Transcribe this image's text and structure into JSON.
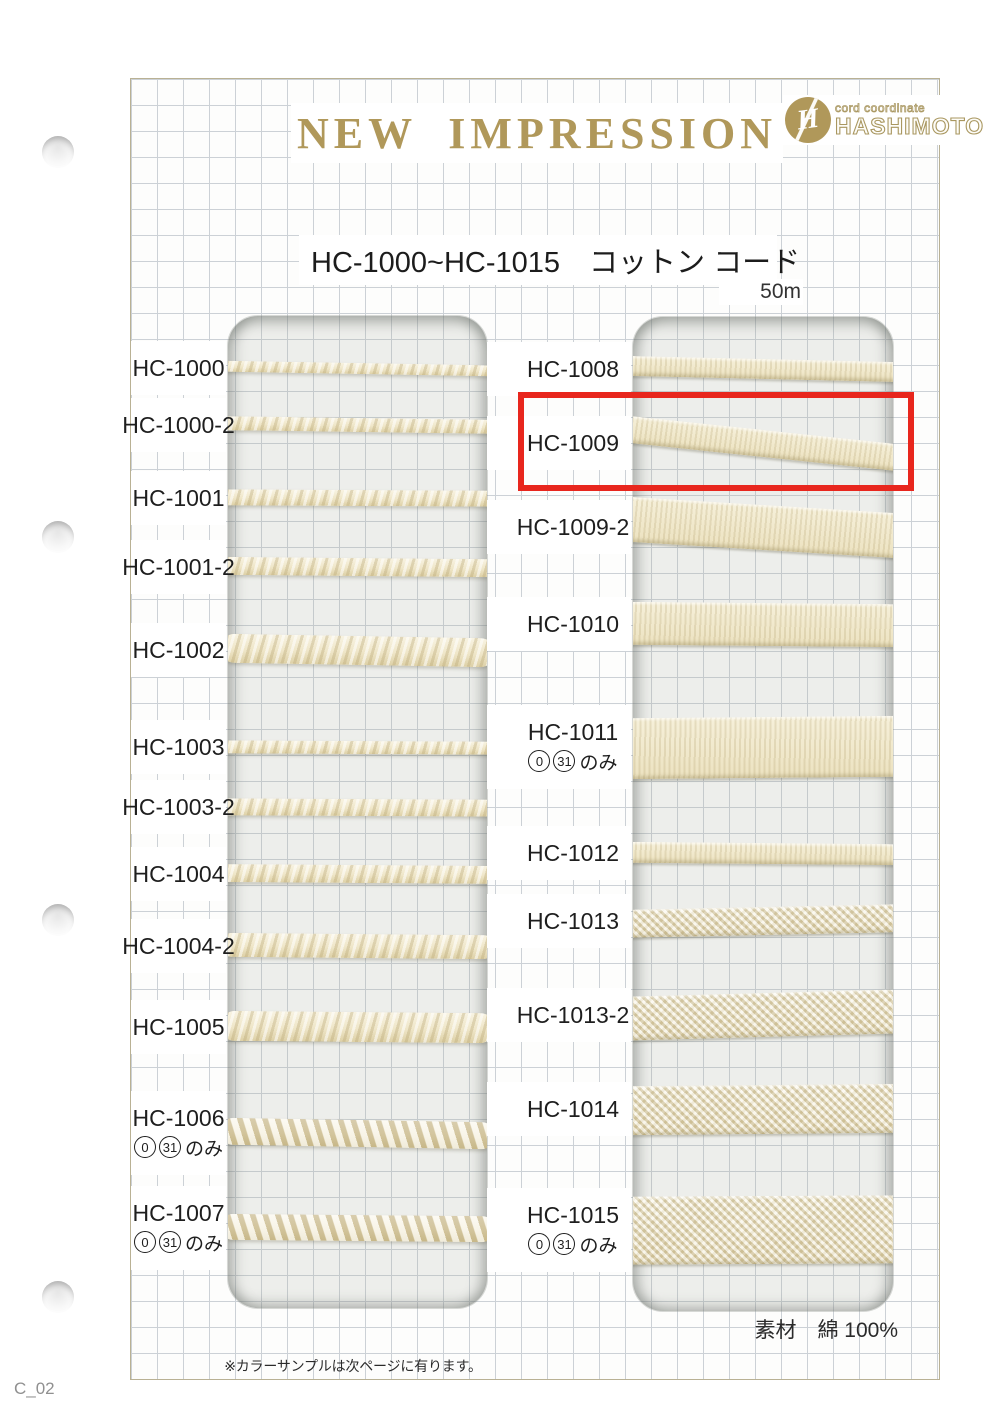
{
  "header": {
    "title": "NEW IMPRESSION",
    "logo": {
      "monogram": "H",
      "tagline": "cord coordinate",
      "company": "HASHIMOTO"
    },
    "subtitle": "HC-1000~HC-1015　コットン コード",
    "length_note": "50m"
  },
  "highlight": {
    "target": "HC-1009"
  },
  "samples": {
    "left": [
      {
        "id": "HC-1000",
        "type": "round-braid",
        "thickness": 11
      },
      {
        "id": "HC-1000-2",
        "type": "round-braid",
        "thickness": 14
      },
      {
        "id": "HC-1001",
        "type": "round-braid",
        "thickness": 16
      },
      {
        "id": "HC-1001-2",
        "type": "round-braid",
        "thickness": 18
      },
      {
        "id": "HC-1002",
        "type": "round-braid",
        "thickness": 29
      },
      {
        "id": "HC-1003",
        "type": "round-braid",
        "thickness": 13
      },
      {
        "id": "HC-1003-2",
        "type": "round-braid",
        "thickness": 17
      },
      {
        "id": "HC-1004",
        "type": "round-braid",
        "thickness": 18
      },
      {
        "id": "HC-1004-2",
        "type": "round-braid",
        "thickness": 24
      },
      {
        "id": "HC-1005",
        "type": "round-braid",
        "thickness": 30
      },
      {
        "id": "HC-1006",
        "type": "twist",
        "thickness": 27,
        "variants": [
          "0",
          "31"
        ],
        "variants_suffix": "のみ"
      },
      {
        "id": "HC-1007",
        "type": "twist",
        "thickness": 26,
        "variants": [
          "0",
          "31"
        ],
        "variants_suffix": "のみ"
      }
    ],
    "right": [
      {
        "id": "HC-1008",
        "type": "flat-tape",
        "thickness": 20
      },
      {
        "id": "HC-1009",
        "type": "flat-tape",
        "thickness": 27,
        "highlighted": true
      },
      {
        "id": "HC-1009-2",
        "type": "flat-tape",
        "thickness": 45
      },
      {
        "id": "HC-1010",
        "type": "flat-tape",
        "thickness": 43
      },
      {
        "id": "HC-1011",
        "type": "flat-tape",
        "thickness": 61,
        "variants": [
          "0",
          "31"
        ],
        "variants_suffix": "のみ"
      },
      {
        "id": "HC-1012",
        "type": "flat-tape",
        "thickness": 21
      },
      {
        "id": "HC-1013",
        "type": "herringbone",
        "thickness": 28
      },
      {
        "id": "HC-1013-2",
        "type": "herringbone",
        "thickness": 44
      },
      {
        "id": "HC-1014",
        "type": "herringbone",
        "thickness": 49
      },
      {
        "id": "HC-1015",
        "type": "herringbone",
        "thickness": 68,
        "variants": [
          "0",
          "31"
        ],
        "variants_suffix": "のみ"
      }
    ]
  },
  "footer": {
    "material": "素材　綿 100%",
    "note": "※カラーサンプルは次ページに有ります。",
    "page_code": "C_02"
  },
  "colors": {
    "title_gold": "#b0985a",
    "highlight_red": "#e8261d",
    "cord_cream": "#f0e9cf",
    "grid_line": "#ccd1d6"
  }
}
